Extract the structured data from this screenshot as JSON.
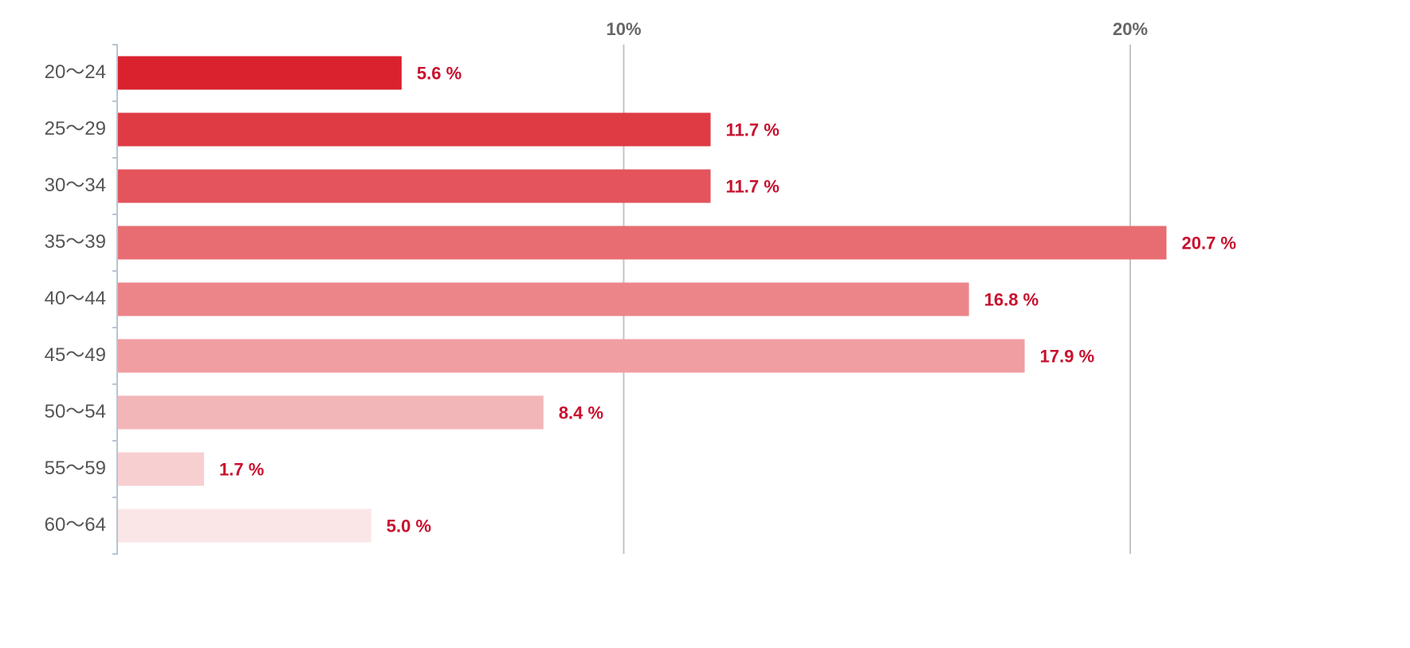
{
  "chart_data": {
    "type": "hbar",
    "categories": [
      "20〜24",
      "25〜29",
      "30〜34",
      "35〜39",
      "40〜44",
      "45〜49",
      "50〜54",
      "55〜59",
      "60〜64"
    ],
    "values": [
      5.6,
      11.7,
      11.7,
      20.7,
      16.8,
      17.9,
      8.4,
      1.7,
      5.0
    ],
    "value_labels": [
      "5.6 %",
      "11.7 %",
      "11.7 %",
      "20.7 %",
      "16.8 %",
      "17.9 %",
      "8.4 %",
      "1.7 %",
      "5.0 %"
    ],
    "colors": [
      "#da222e",
      "#de3b45",
      "#e3545c",
      "#e86d73",
      "#ec858a",
      "#f09ea1",
      "#f3b6b8",
      "#f7cfd1",
      "#fbe6e7"
    ],
    "xlim": [
      0,
      22
    ],
    "xticks": [
      {
        "value": 10,
        "label": "10%"
      },
      {
        "value": 20,
        "label": "20%"
      }
    ],
    "grid": true
  }
}
